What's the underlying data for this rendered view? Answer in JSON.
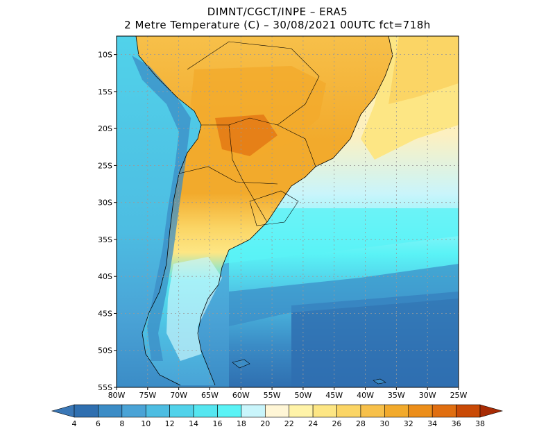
{
  "title": {
    "line1": "DIMNT/CGCT/INPE –  ERA5",
    "line2": "2 Metre Temperature (C) –  30/08/2021 00UTC fct=718h"
  },
  "map": {
    "lat_ticks": [
      "10S",
      "15S",
      "20S",
      "25S",
      "30S",
      "35S",
      "40S",
      "45S",
      "50S",
      "55S"
    ],
    "lon_ticks": [
      "80W",
      "75W",
      "70W",
      "65W",
      "60W",
      "55W",
      "50W",
      "45W",
      "40W",
      "35W",
      "30W",
      "25W"
    ],
    "lat_range": [
      -55,
      -7.5
    ],
    "lon_range": [
      -80,
      -25
    ]
  },
  "colorbar": {
    "labels": [
      "4",
      "6",
      "8",
      "10",
      "12",
      "14",
      "16",
      "18",
      "20",
      "22",
      "24",
      "26",
      "28",
      "30",
      "32",
      "34",
      "36",
      "38"
    ],
    "colors": [
      "#3a77b6",
      "#2f6fb0",
      "#3b8cc6",
      "#4aa3d6",
      "#4dbde2",
      "#51d2ea",
      "#55e6f0",
      "#5af3f6",
      "#c9f5fb",
      "#fff6d6",
      "#fff3a8",
      "#fde684",
      "#fbd565",
      "#f7c04a",
      "#f2aa2c",
      "#ec8e1a",
      "#e06e10",
      "#c94a06",
      "#a82b04"
    ]
  }
}
